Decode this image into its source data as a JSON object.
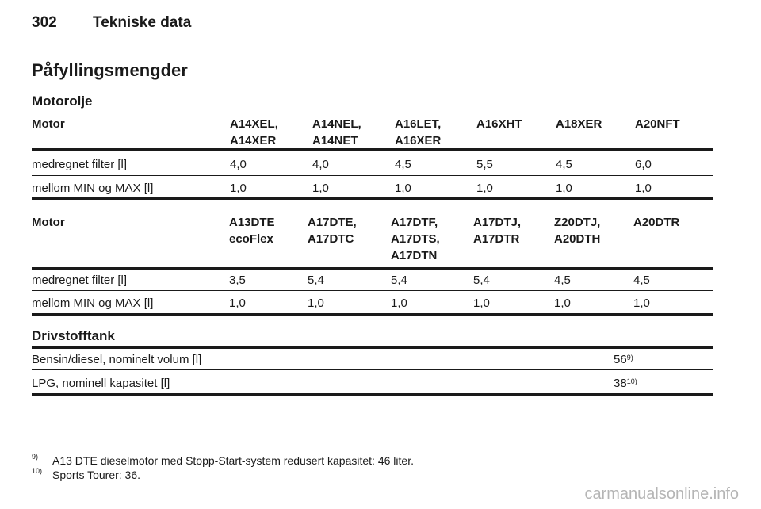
{
  "header": {
    "page_number": "302",
    "title": "Tekniske data"
  },
  "section_title": "Påfyllingsmengder",
  "oil": {
    "title": "Motorolje",
    "table1": {
      "columns": [
        "Motor",
        "A14XEL,\nA14XER",
        "A14NEL,\nA14NET",
        "A16LET,\nA16XER",
        "A16XHT",
        "A18XER",
        "A20NFT"
      ],
      "rows": [
        [
          "medregnet filter [l]",
          "4,0",
          "4,0",
          "4,5",
          "5,5",
          "4,5",
          "6,0"
        ],
        [
          "mellom MIN og MAX [l]",
          "1,0",
          "1,0",
          "1,0",
          "1,0",
          "1,0",
          "1,0"
        ]
      ]
    },
    "table2": {
      "columns": [
        "Motor",
        "A13DTE\necoFlex",
        "A17DTE,\nA17DTC",
        "A17DTF,\nA17DTS,\nA17DTN",
        "A17DTJ,\nA17DTR",
        "Z20DTJ,\nA20DTH",
        "A20DTR"
      ],
      "rows": [
        [
          "medregnet filter [l]",
          "3,5",
          "5,4",
          "5,4",
          "5,4",
          "4,5",
          "4,5"
        ],
        [
          "mellom MIN og MAX [l]",
          "1,0",
          "1,0",
          "1,0",
          "1,0",
          "1,0",
          "1,0"
        ]
      ]
    }
  },
  "fuel": {
    "title": "Drivstofftank",
    "rows": [
      {
        "label": "Bensin/diesel, nominelt volum [l]",
        "value": "56",
        "ref": "9)"
      },
      {
        "label": "LPG, nominell kapasitet [l]",
        "value": "38",
        "ref": "10)"
      }
    ]
  },
  "footnotes": [
    {
      "marker": "9)",
      "text": "A13 DTE dieselmotor med Stopp-Start-system redusert kapasitet: 46 liter."
    },
    {
      "marker": "10)",
      "text": "Sports Tourer: 36."
    }
  ],
  "watermark": "carmanualsonline.info"
}
